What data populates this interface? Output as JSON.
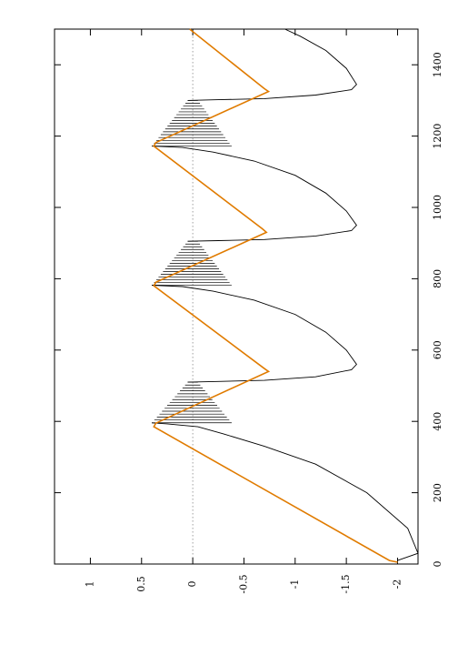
{
  "chart_data": {
    "type": "line",
    "orientation": "rotated-90-clockwise",
    "xlabel": "",
    "ylabel": "",
    "xlim": [
      0,
      1500
    ],
    "ylim": [
      -2.2,
      1.35
    ],
    "x_ticks": [
      0,
      200,
      400,
      600,
      800,
      1000,
      1200,
      1400
    ],
    "y_ticks": [
      -2,
      -1.5,
      -1,
      -0.5,
      0,
      0.5,
      1
    ],
    "x_tick_labels": [
      "0",
      "200",
      "400",
      "600",
      "800",
      "1000",
      "1200",
      "1400"
    ],
    "y_tick_labels": [
      "-2",
      "-1.5",
      "-1",
      "-0.5",
      "0",
      "0.5",
      "1"
    ],
    "zero_line": {
      "y": 0,
      "style": "dotted",
      "color": "#888888"
    },
    "grid": false,
    "legend": "none",
    "series": [
      {
        "color": "#000000",
        "style": "solid",
        "points": [
          [
            10,
            -2.0
          ],
          [
            30,
            -2.2
          ],
          [
            100,
            -2.1
          ],
          [
            200,
            -1.7
          ],
          [
            280,
            -1.2
          ],
          [
            330,
            -0.7
          ],
          [
            365,
            -0.3
          ],
          [
            385,
            -0.05
          ],
          [
            393,
            0.25
          ],
          [
            396,
            0.4
          ]
        ],
        "oscillation_bands": [
          {
            "x_start": 396,
            "x_end": 510,
            "upper_start": 0.4,
            "upper_end": 0.05,
            "lower_start": -0.38,
            "lower_end": -0.05,
            "line_spacing": 3
          },
          {
            "x_start": 782,
            "x_end": 905,
            "upper_start": 0.4,
            "upper_end": 0.05,
            "lower_start": -0.38,
            "lower_end": -0.05,
            "line_spacing": 3
          },
          {
            "x_start": 1172,
            "x_end": 1300,
            "upper_start": 0.4,
            "upper_end": 0.05,
            "lower_start": -0.38,
            "lower_end": -0.05,
            "line_spacing": 3
          }
        ],
        "segments_after_bands": [
          [
            [
              510,
              0.05
            ],
            [
              512,
              -0.25
            ],
            [
              515,
              -0.7
            ],
            [
              525,
              -1.2
            ],
            [
              545,
              -1.55
            ],
            [
              560,
              -1.6
            ],
            [
              600,
              -1.5
            ],
            [
              650,
              -1.3
            ],
            [
              700,
              -1.0
            ],
            [
              740,
              -0.6
            ],
            [
              765,
              -0.2
            ],
            [
              778,
              0.1
            ],
            [
              782,
              0.4
            ]
          ],
          [
            [
              905,
              0.05
            ],
            [
              907,
              -0.25
            ],
            [
              910,
              -0.7
            ],
            [
              920,
              -1.2
            ],
            [
              935,
              -1.55
            ],
            [
              950,
              -1.6
            ],
            [
              990,
              -1.5
            ],
            [
              1040,
              -1.3
            ],
            [
              1090,
              -1.0
            ],
            [
              1130,
              -0.6
            ],
            [
              1155,
              -0.2
            ],
            [
              1168,
              0.1
            ],
            [
              1172,
              0.4
            ]
          ],
          [
            [
              1300,
              0.05
            ],
            [
              1302,
              -0.25
            ],
            [
              1305,
              -0.7
            ],
            [
              1315,
              -1.2
            ],
            [
              1330,
              -1.55
            ],
            [
              1345,
              -1.6
            ],
            [
              1390,
              -1.5
            ],
            [
              1440,
              -1.3
            ],
            [
              1480,
              -1.05
            ],
            [
              1500,
              -0.9
            ]
          ]
        ]
      },
      {
        "color": "#e07b00",
        "style": "solid",
        "points": [
          [
            5,
            -2.0
          ],
          [
            10,
            -1.92
          ],
          [
            385,
            0.38
          ],
          [
            395,
            0.36
          ],
          [
            540,
            -0.74
          ],
          [
            548,
            -0.7
          ],
          [
            780,
            0.38
          ],
          [
            790,
            0.36
          ],
          [
            930,
            -0.72
          ],
          [
            940,
            -0.68
          ],
          [
            1172,
            0.38
          ],
          [
            1182,
            0.36
          ],
          [
            1325,
            -0.74
          ],
          [
            1333,
            -0.7
          ],
          [
            1500,
            0.03
          ]
        ]
      }
    ]
  }
}
